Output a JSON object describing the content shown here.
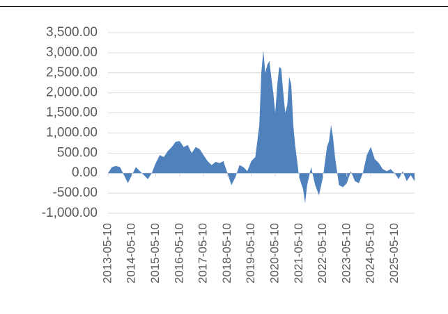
{
  "chart_data": {
    "type": "area",
    "color": "#4f81bd",
    "grid": true,
    "x": [
      "2013-05-10",
      "2013-07-10",
      "2013-09-10",
      "2013-11-10",
      "2014-01-10",
      "2014-03-10",
      "2014-05-10",
      "2014-07-10",
      "2014-09-10",
      "2014-11-10",
      "2015-01-10",
      "2015-03-10",
      "2015-05-10",
      "2015-07-10",
      "2015-09-10",
      "2015-11-10",
      "2016-01-10",
      "2016-03-10",
      "2016-05-10",
      "2016-07-10",
      "2016-09-10",
      "2016-11-10",
      "2017-01-10",
      "2017-03-10",
      "2017-05-10",
      "2017-07-10",
      "2017-09-10",
      "2017-11-10",
      "2018-01-10",
      "2018-03-10",
      "2018-05-10",
      "2018-07-10",
      "2018-09-10",
      "2018-11-10",
      "2019-01-10",
      "2019-03-10",
      "2019-05-10",
      "2019-07-10",
      "2019-09-10",
      "2019-10-10",
      "2019-11-10",
      "2019-12-10",
      "2020-01-10",
      "2020-02-10",
      "2020-03-10",
      "2020-04-10",
      "2020-05-10",
      "2020-06-10",
      "2020-07-10",
      "2020-08-10",
      "2020-09-10",
      "2020-10-10",
      "2020-11-10",
      "2020-12-10",
      "2021-01-10",
      "2021-02-10",
      "2021-03-10",
      "2021-04-10",
      "2021-05-10",
      "2021-07-10",
      "2021-08-10",
      "2021-09-10",
      "2021-11-10",
      "2022-01-10",
      "2022-03-10",
      "2022-05-10",
      "2022-07-10",
      "2022-08-10",
      "2022-09-10",
      "2022-10-10",
      "2022-11-10",
      "2023-01-10",
      "2023-03-10",
      "2023-05-10",
      "2023-07-10",
      "2023-09-10",
      "2023-11-10",
      "2024-01-10",
      "2024-03-10",
      "2024-05-10",
      "2024-07-10",
      "2024-09-10",
      "2024-11-10",
      "2025-01-10",
      "2025-03-10",
      "2025-05-10",
      "2025-07-10",
      "2025-09-10",
      "2025-11-10",
      "2026-01-10",
      "2026-03-10"
    ],
    "values": [
      0,
      150,
      180,
      150,
      -50,
      -250,
      -50,
      150,
      50,
      -50,
      -150,
      0,
      250,
      450,
      400,
      550,
      650,
      780,
      800,
      650,
      700,
      500,
      650,
      600,
      450,
      300,
      200,
      280,
      250,
      300,
      0,
      -300,
      -100,
      200,
      150,
      50,
      300,
      400,
      1200,
      2500,
      3050,
      2500,
      2700,
      2800,
      2400,
      2000,
      1500,
      2200,
      2650,
      2600,
      2000,
      1500,
      1700,
      2400,
      2200,
      1200,
      700,
      300,
      -100,
      -400,
      -750,
      -300,
      150,
      -300,
      -550,
      -100,
      650,
      800,
      1200,
      900,
      400,
      -300,
      -350,
      -250,
      50,
      -200,
      -250,
      0,
      450,
      650,
      350,
      250,
      100,
      50,
      100,
      0,
      -150,
      50,
      -200,
      -50,
      -200
    ],
    "xlim": [
      "2013-05-10",
      "2026-03-10"
    ],
    "xticks": [
      "2013-05-10",
      "2014-05-10",
      "2015-05-10",
      "2016-05-10",
      "2017-05-10",
      "2018-05-10",
      "2019-05-10",
      "2020-05-10",
      "2021-05-10",
      "2022-05-10",
      "2023-05-10",
      "2024-05-10",
      "2025-05-10"
    ],
    "ylim": [
      -1000,
      3500
    ],
    "yticks": [
      {
        "value": -1000,
        "label": "-1,000.00"
      },
      {
        "value": -500,
        "label": "-500.00"
      },
      {
        "value": 0,
        "label": "0.00"
      },
      {
        "value": 500,
        "label": "500.00"
      },
      {
        "value": 1000,
        "label": "1,000.00"
      },
      {
        "value": 1500,
        "label": "1,500.00"
      },
      {
        "value": 2000,
        "label": "2,000.00"
      },
      {
        "value": 2500,
        "label": "2,500.00"
      },
      {
        "value": 3000,
        "label": "3,000.00"
      },
      {
        "value": 3500,
        "label": "3,500.00"
      }
    ]
  }
}
